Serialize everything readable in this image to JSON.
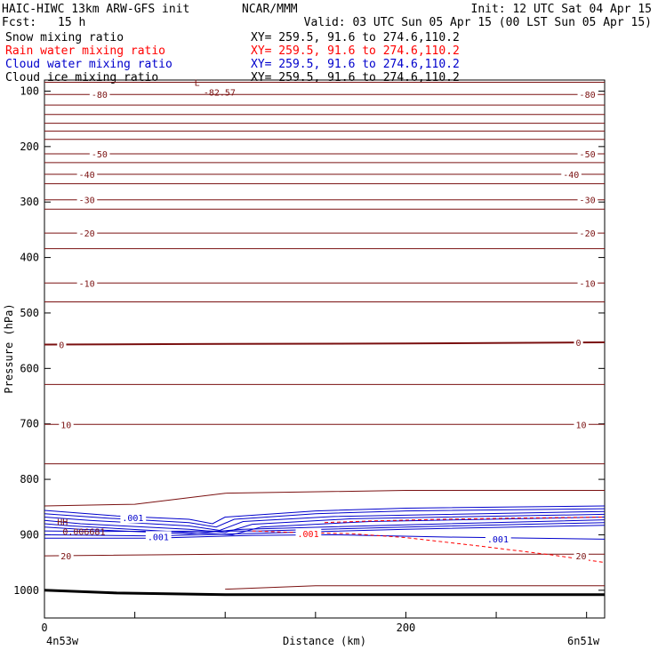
{
  "header": {
    "title_left": "HAIC-HIWC 13km ARW-GFS init",
    "title_center": "NCAR/MMM",
    "init": "Init: 12 UTC Sat 04 Apr 15",
    "fcst_label": "Fcst:",
    "fcst_value": "15 h",
    "valid": "Valid: 03 UTC Sun 05 Apr 15 (00 LST Sun 05 Apr 15)"
  },
  "fields": [
    {
      "name": "Snow mixing ratio",
      "xy": "XY= 259.5, 91.6 to 274.6,110.2",
      "color": "#000000"
    },
    {
      "name": "Rain water mixing ratio",
      "xy": "XY= 259.5, 91.6 to 274.6,110.2",
      "color": "#ff0000"
    },
    {
      "name": "Cloud water mixing ratio",
      "xy": "XY= 259.5, 91.6 to 274.6,110.2",
      "color": "#0000cc"
    },
    {
      "name": "Cloud ice mixing ratio",
      "xy": "XY= 259.5, 91.6 to 274.6,110.2",
      "color": "#000000"
    }
  ],
  "axis": {
    "ylabel": "Pressure (hPa)",
    "xlabel": "Distance (km)",
    "x_left_label": "4n53w",
    "x_right_label": "6n51w"
  },
  "colors": {
    "temperature": "#7a1010",
    "rain": "#ff0000",
    "cloud_water": "#0000cc",
    "ground": "#000000"
  },
  "chart_data": {
    "type": "line",
    "x_range": [
      0,
      310
    ],
    "y_range": [
      1050,
      80
    ],
    "y_scale": "linear",
    "x_ticks": [
      0,
      50,
      100,
      150,
      200,
      250,
      300
    ],
    "x_tick_labels": [
      {
        "value": 0,
        "label": "0"
      },
      {
        "value": 200,
        "label": "200"
      }
    ],
    "y_ticks": [
      100,
      200,
      300,
      400,
      500,
      600,
      700,
      800,
      900,
      1000
    ],
    "y_tick_labels": [
      "100",
      "200",
      "300",
      "400",
      "500",
      "600",
      "700",
      "800",
      "900",
      "1000"
    ],
    "temperature_isotherms": [
      {
        "value": -85,
        "pts": [
          [
            0,
            84
          ],
          [
            310,
            84
          ]
        ]
      },
      {
        "value": -80,
        "pts": [
          [
            0,
            106
          ],
          [
            310,
            106
          ]
        ]
      },
      {
        "value": -75,
        "pts": [
          [
            0,
            125
          ],
          [
            310,
            125
          ]
        ]
      },
      {
        "value": -70,
        "pts": [
          [
            0,
            142
          ],
          [
            310,
            142
          ]
        ]
      },
      {
        "value": -65,
        "pts": [
          [
            0,
            158
          ],
          [
            310,
            158
          ]
        ]
      },
      {
        "value": -60,
        "pts": [
          [
            0,
            172
          ],
          [
            310,
            172
          ]
        ]
      },
      {
        "value": -55,
        "pts": [
          [
            0,
            187
          ],
          [
            310,
            187
          ]
        ]
      },
      {
        "value": -50,
        "pts": [
          [
            0,
            213
          ],
          [
            310,
            213
          ]
        ]
      },
      {
        "value": -45,
        "pts": [
          [
            0,
            229
          ],
          [
            310,
            229
          ]
        ]
      },
      {
        "value": -40,
        "pts": [
          [
            0,
            250
          ],
          [
            310,
            250
          ]
        ]
      },
      {
        "value": -35,
        "pts": [
          [
            0,
            267
          ],
          [
            310,
            267
          ]
        ]
      },
      {
        "value": -30,
        "pts": [
          [
            0,
            296
          ],
          [
            310,
            296
          ]
        ]
      },
      {
        "value": -25,
        "pts": [
          [
            0,
            313
          ],
          [
            310,
            313
          ]
        ]
      },
      {
        "value": -20,
        "pts": [
          [
            0,
            356
          ],
          [
            310,
            356
          ]
        ]
      },
      {
        "value": -15,
        "pts": [
          [
            0,
            384
          ],
          [
            310,
            384
          ]
        ]
      },
      {
        "value": -10,
        "pts": [
          [
            0,
            446
          ],
          [
            310,
            446
          ]
        ]
      },
      {
        "value": -5,
        "pts": [
          [
            0,
            480
          ],
          [
            310,
            480
          ]
        ]
      },
      {
        "value": 0,
        "pts": [
          [
            0,
            557
          ],
          [
            80,
            556
          ],
          [
            200,
            555
          ],
          [
            310,
            553
          ]
        ]
      },
      {
        "value": 5,
        "pts": [
          [
            0,
            629
          ],
          [
            310,
            629
          ]
        ]
      },
      {
        "value": 10,
        "pts": [
          [
            0,
            701
          ],
          [
            310,
            701
          ]
        ]
      },
      {
        "value": 15,
        "pts": [
          [
            0,
            772
          ],
          [
            310,
            772
          ]
        ]
      },
      {
        "value": 20,
        "pts": [
          [
            0,
            848
          ],
          [
            50,
            845
          ],
          [
            100,
            825
          ],
          [
            200,
            820
          ],
          [
            310,
            820
          ]
        ]
      },
      {
        "value": 20,
        "pts": [
          [
            0,
            938
          ],
          [
            100,
            935
          ],
          [
            200,
            935
          ],
          [
            310,
            935
          ]
        ]
      },
      {
        "value": 20,
        "pts": [
          [
            100,
            998
          ],
          [
            150,
            992
          ],
          [
            310,
            992
          ]
        ]
      }
    ],
    "isotherm_labels": [
      {
        "text": "-80",
        "x": 26,
        "p": 106
      },
      {
        "text": "-80",
        "x": 296,
        "p": 106
      },
      {
        "text": "-50",
        "x": 26,
        "p": 213
      },
      {
        "text": "-50",
        "x": 296,
        "p": 213
      },
      {
        "text": "-40",
        "x": 19,
        "p": 250
      },
      {
        "text": "-40",
        "x": 287,
        "p": 250
      },
      {
        "text": "-30",
        "x": 19,
        "p": 296
      },
      {
        "text": "-30",
        "x": 296,
        "p": 296
      },
      {
        "text": "-20",
        "x": 19,
        "p": 356
      },
      {
        "text": "-20",
        "x": 296,
        "p": 356
      },
      {
        "text": "-10",
        "x": 19,
        "p": 446
      },
      {
        "text": "-10",
        "x": 296,
        "p": 446
      },
      {
        "text": "0",
        "x": 8,
        "p": 557
      },
      {
        "text": "0",
        "x": 294,
        "p": 553
      },
      {
        "text": "10",
        "x": 9,
        "p": 701
      },
      {
        "text": "10",
        "x": 294,
        "p": 701
      },
      {
        "text": "20",
        "x": 9,
        "p": 938
      },
      {
        "text": "20",
        "x": 294,
        "p": 938
      }
    ],
    "extrema": [
      {
        "text": "L",
        "x": 83,
        "p": 84
      },
      {
        "text": "-82.57",
        "x": 88,
        "p": 102
      },
      {
        "text": "HH",
        "x": 7,
        "p": 876
      },
      {
        "text": "0.006681",
        "x": 10,
        "p": 894
      }
    ],
    "cloud_water_contours": [
      {
        "pts": [
          [
            0,
            856
          ],
          [
            40,
            866
          ],
          [
            80,
            872
          ],
          [
            93,
            880
          ],
          [
            100,
            868
          ],
          [
            150,
            857
          ],
          [
            200,
            852
          ],
          [
            310,
            848
          ]
        ]
      },
      {
        "pts": [
          [
            0,
            862
          ],
          [
            35,
            870
          ],
          [
            80,
            878
          ],
          [
            95,
            886
          ],
          [
            105,
            872
          ],
          [
            150,
            862
          ],
          [
            200,
            857
          ],
          [
            310,
            853
          ]
        ]
      },
      {
        "pts": [
          [
            0,
            868
          ],
          [
            25,
            874
          ],
          [
            80,
            884
          ],
          [
            97,
            892
          ],
          [
            110,
            876
          ],
          [
            160,
            867
          ],
          [
            310,
            858
          ]
        ]
      },
      {
        "pts": [
          [
            0,
            874
          ],
          [
            20,
            880
          ],
          [
            80,
            890
          ],
          [
            100,
            896
          ],
          [
            115,
            881
          ],
          [
            170,
            871
          ],
          [
            310,
            863
          ]
        ]
      },
      {
        "pts": [
          [
            0,
            880
          ],
          [
            15,
            884
          ],
          [
            80,
            896
          ],
          [
            104,
            900
          ],
          [
            120,
            886
          ],
          [
            180,
            876
          ],
          [
            310,
            868
          ]
        ]
      },
      {
        "pts": [
          [
            0,
            886
          ],
          [
            20,
            890
          ],
          [
            80,
            898
          ],
          [
            110,
            890
          ],
          [
            200,
            882
          ],
          [
            310,
            873
          ]
        ]
      },
      {
        "pts": [
          [
            0,
            893
          ],
          [
            30,
            894
          ],
          [
            120,
            893
          ],
          [
            200,
            886
          ],
          [
            310,
            878
          ]
        ]
      },
      {
        "pts": [
          [
            0,
            900
          ],
          [
            60,
            902
          ],
          [
            120,
            897
          ],
          [
            200,
            890
          ],
          [
            310,
            883
          ]
        ]
      },
      {
        "pts": [
          [
            0,
            906
          ],
          [
            60,
            906
          ],
          [
            115,
            901
          ],
          [
            160,
            900
          ],
          [
            220,
            904
          ],
          [
            310,
            908
          ]
        ]
      }
    ],
    "cloud_water_labels": [
      {
        "text": ".001",
        "x": 43,
        "p": 869
      },
      {
        "text": ".001",
        "x": 57,
        "p": 903
      },
      {
        "text": ".001",
        "x": 245,
        "p": 907
      }
    ],
    "rain_contours": [
      {
        "pts": [
          [
            115,
            893
          ],
          [
            140,
            896
          ],
          [
            170,
            898
          ],
          [
            200,
            905
          ],
          [
            240,
            920
          ],
          [
            280,
            936
          ],
          [
            310,
            950
          ]
        ]
      },
      {
        "pts": [
          [
            155,
            878
          ],
          [
            180,
            875
          ],
          [
            220,
            872
          ],
          [
            260,
            870
          ],
          [
            310,
            868
          ]
        ]
      }
    ],
    "rain_labels": [
      {
        "text": ".001",
        "x": 140,
        "p": 898
      }
    ],
    "ground": {
      "pts": [
        [
          0,
          1000
        ],
        [
          40,
          1005
        ],
        [
          100,
          1008
        ],
        [
          200,
          1008
        ],
        [
          310,
          1008
        ]
      ]
    }
  }
}
